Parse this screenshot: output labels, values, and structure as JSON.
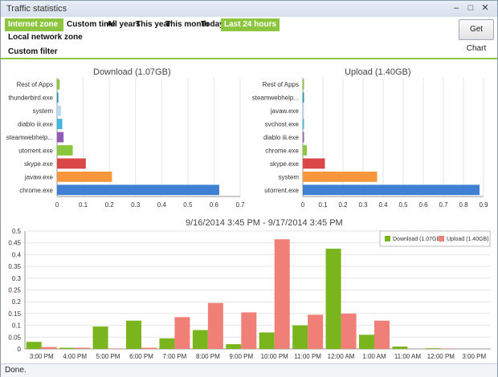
{
  "window": {
    "title": "Traffic statistics",
    "minimize": "–",
    "maximize": "□",
    "close": "✕"
  },
  "toolbar": {
    "zones": [
      "Internet zone",
      "Local network zone",
      "Custom filter"
    ],
    "periods": [
      "Custom time",
      "All years",
      "This year",
      "This month",
      "Today",
      "Last 24 hours"
    ],
    "active_zone": "Internet zone",
    "active_period": "Last 24 hours",
    "get_chart": "Get Chart"
  },
  "colors": {
    "accent": "#8cc63f",
    "download": "#7ab51d",
    "upload": "#f08077"
  },
  "download_chart": {
    "title": "Download (1.07GB)"
  },
  "upload_chart": {
    "title": "Upload (1.40GB)"
  },
  "timeline_title": "9/16/2014 3:45 PM - 9/17/2014 3:45 PM",
  "status": "Done.",
  "chart_data": [
    {
      "type": "bar",
      "orientation": "horizontal",
      "title": "Download (1.07GB)",
      "categories": [
        "chrome.exe",
        "javaw.exe",
        "skype.exe",
        "utorrent.exe",
        "steamwebhelp...",
        "diablo iii.exe",
        "system",
        "thunderbird.exe",
        "Rest of Apps"
      ],
      "values": [
        0.62,
        0.21,
        0.11,
        0.06,
        0.025,
        0.02,
        0.015,
        0.005,
        0.01
      ],
      "colors": [
        "#3f7fd4",
        "#f7963a",
        "#d94848",
        "#8cc63f",
        "#8e5bb5",
        "#3fb7e0",
        "#b8d8f0",
        "#1a9ab0",
        "#8cc63f"
      ],
      "xlim": [
        0,
        0.7
      ],
      "xticks": [
        "0",
        "0.1",
        "0.2",
        "0.3",
        "0.4",
        "0.5",
        "0.6",
        "0.7"
      ]
    },
    {
      "type": "bar",
      "orientation": "horizontal",
      "title": "Upload (1.40GB)",
      "categories": [
        "utorrent.exe",
        "system",
        "skype.exe",
        "chrome.exe",
        "diablo iii.exe",
        "svchost.exe",
        "javaw.exe",
        "steamwebhelp...",
        "Rest of Apps"
      ],
      "values": [
        0.88,
        0.37,
        0.11,
        0.02,
        0.005,
        0.005,
        0.001,
        0.001,
        0.001
      ],
      "colors": [
        "#3f7fd4",
        "#f7963a",
        "#d94848",
        "#8cc63f",
        "#8e5bb5",
        "#3fb7e0",
        "#b8d8f0",
        "#1a9ab0",
        "#8cc63f"
      ],
      "xlim": [
        0,
        0.9
      ],
      "xticks": [
        "0",
        "0.1",
        "0.2",
        "0.3",
        "0.4",
        "0.5",
        "0.6",
        "0.7",
        "0.8",
        "0.9"
      ]
    },
    {
      "type": "bar",
      "title": "9/16/2014 3:45 PM - 9/17/2014 3:45 PM",
      "categories": [
        "3:00 PM",
        "4:00 PM",
        "5:00 PM",
        "6:00 PM",
        "7:00 PM",
        "8:00 PM",
        "9:00 PM",
        "10:00 PM",
        "11:00 PM",
        "12:00 AM",
        "1:00 AM",
        "11:00 AM",
        "12:00 PM",
        "3:00 PM"
      ],
      "series": [
        {
          "name": "Download (1.07GB)",
          "values": [
            0.03,
            0.005,
            0.095,
            0.12,
            0.045,
            0.08,
            0.02,
            0.07,
            0.1,
            0.425,
            0.06,
            0.01,
            0.003,
            0.0
          ]
        },
        {
          "name": "Upload (1.40GB)",
          "values": [
            0.008,
            0.005,
            0.002,
            0.005,
            0.135,
            0.195,
            0.155,
            0.465,
            0.145,
            0.15,
            0.12,
            0.0,
            0.002,
            0.0
          ]
        }
      ],
      "ylim": [
        0,
        0.5
      ],
      "yticks": [
        "0",
        "0.05",
        "0.1",
        "0.15",
        "0.2",
        "0.25",
        "0.3",
        "0.35",
        "0.4",
        "0.45",
        "0.5"
      ],
      "legend": "top-right"
    }
  ]
}
